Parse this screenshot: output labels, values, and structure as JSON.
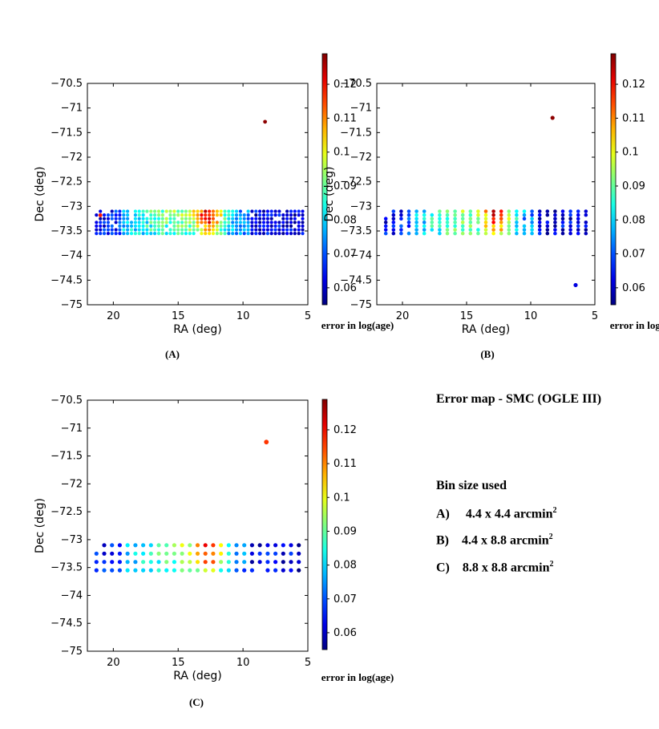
{
  "side_panel": {
    "title": "Error map - SMC (OGLE III)",
    "bin_heading": "Bin size used",
    "bins": [
      {
        "label": "A)",
        "size": "4.4 x 4.4 arcmin",
        "exp": "2"
      },
      {
        "label": "B)",
        "size": "4.4 x 8.8 arcmin",
        "exp": "2"
      },
      {
        "label": "C)",
        "size": "8.8 x 8.8 arcmin",
        "exp": "2"
      }
    ]
  },
  "chart_data": [
    {
      "type": "scatter",
      "panel": "(A)",
      "bin": "4.4 x 4.4 arcmin2",
      "xlabel": "RA (deg)",
      "ylabel": "Dec (deg)",
      "xlim": [
        22,
        5
      ],
      "ylim": [
        -75,
        -70.5
      ],
      "xticks": [
        20,
        15,
        10,
        5
      ],
      "yticks": [
        -70.5,
        -71,
        -71.5,
        -72,
        -72.5,
        -73,
        -73.5,
        -74,
        -74.5,
        -75
      ],
      "colorbar": {
        "label": "error in log(age)",
        "range": [
          0.055,
          0.129
        ],
        "ticks": [
          0.06,
          0.07,
          0.08,
          0.09,
          0.1,
          0.11,
          0.12
        ]
      },
      "grid": {
        "ra_step": 0.3,
        "dec_step": 0.075,
        "seed": 11
      },
      "isolated_points": [
        {
          "ra": 8.3,
          "dec": -71.28,
          "err": 0.128
        },
        {
          "ra": 21.0,
          "dec": -73.18,
          "err": 0.118
        }
      ]
    },
    {
      "type": "scatter",
      "panel": "(B)",
      "bin": "4.4 x 8.8 arcmin2",
      "xlabel": "RA (deg)",
      "ylabel": "Dec (deg)",
      "xlim": [
        22,
        5
      ],
      "ylim": [
        -75,
        -70.5
      ],
      "xticks": [
        20,
        15,
        10,
        5
      ],
      "yticks": [
        -70.5,
        -71,
        -71.5,
        -72,
        -72.5,
        -73,
        -73.5,
        -74,
        -74.5,
        -75
      ],
      "colorbar": {
        "label": "error in log(age)",
        "range": [
          0.055,
          0.129
        ],
        "ticks": [
          0.06,
          0.07,
          0.08,
          0.09,
          0.1,
          0.11,
          0.12
        ]
      },
      "grid": {
        "ra_step": 0.6,
        "dec_step": 0.075,
        "seed": 23
      },
      "isolated_points": [
        {
          "ra": 8.3,
          "dec": -71.2,
          "err": 0.128
        },
        {
          "ra": 6.5,
          "dec": -74.6,
          "err": 0.062
        }
      ]
    },
    {
      "type": "scatter",
      "panel": "(C)",
      "bin": "8.8 x 8.8 arcmin2",
      "xlabel": "RA (deg)",
      "ylabel": "Dec (deg)",
      "xlim": [
        22,
        5
      ],
      "ylim": [
        -75,
        -70.5
      ],
      "xticks": [
        20,
        15,
        10,
        5
      ],
      "yticks": [
        -70.5,
        -71,
        -71.5,
        -72,
        -72.5,
        -73,
        -73.5,
        -74,
        -74.5,
        -75
      ],
      "colorbar": {
        "label": "error in log(age)",
        "range": [
          0.055,
          0.129
        ],
        "ticks": [
          0.06,
          0.07,
          0.08,
          0.09,
          0.1,
          0.11,
          0.12
        ]
      },
      "grid": {
        "ra_step": 0.6,
        "dec_step": 0.15,
        "seed": 37
      },
      "isolated_points": [
        {
          "ra": 8.2,
          "dec": -71.25,
          "err": 0.116
        }
      ]
    }
  ]
}
